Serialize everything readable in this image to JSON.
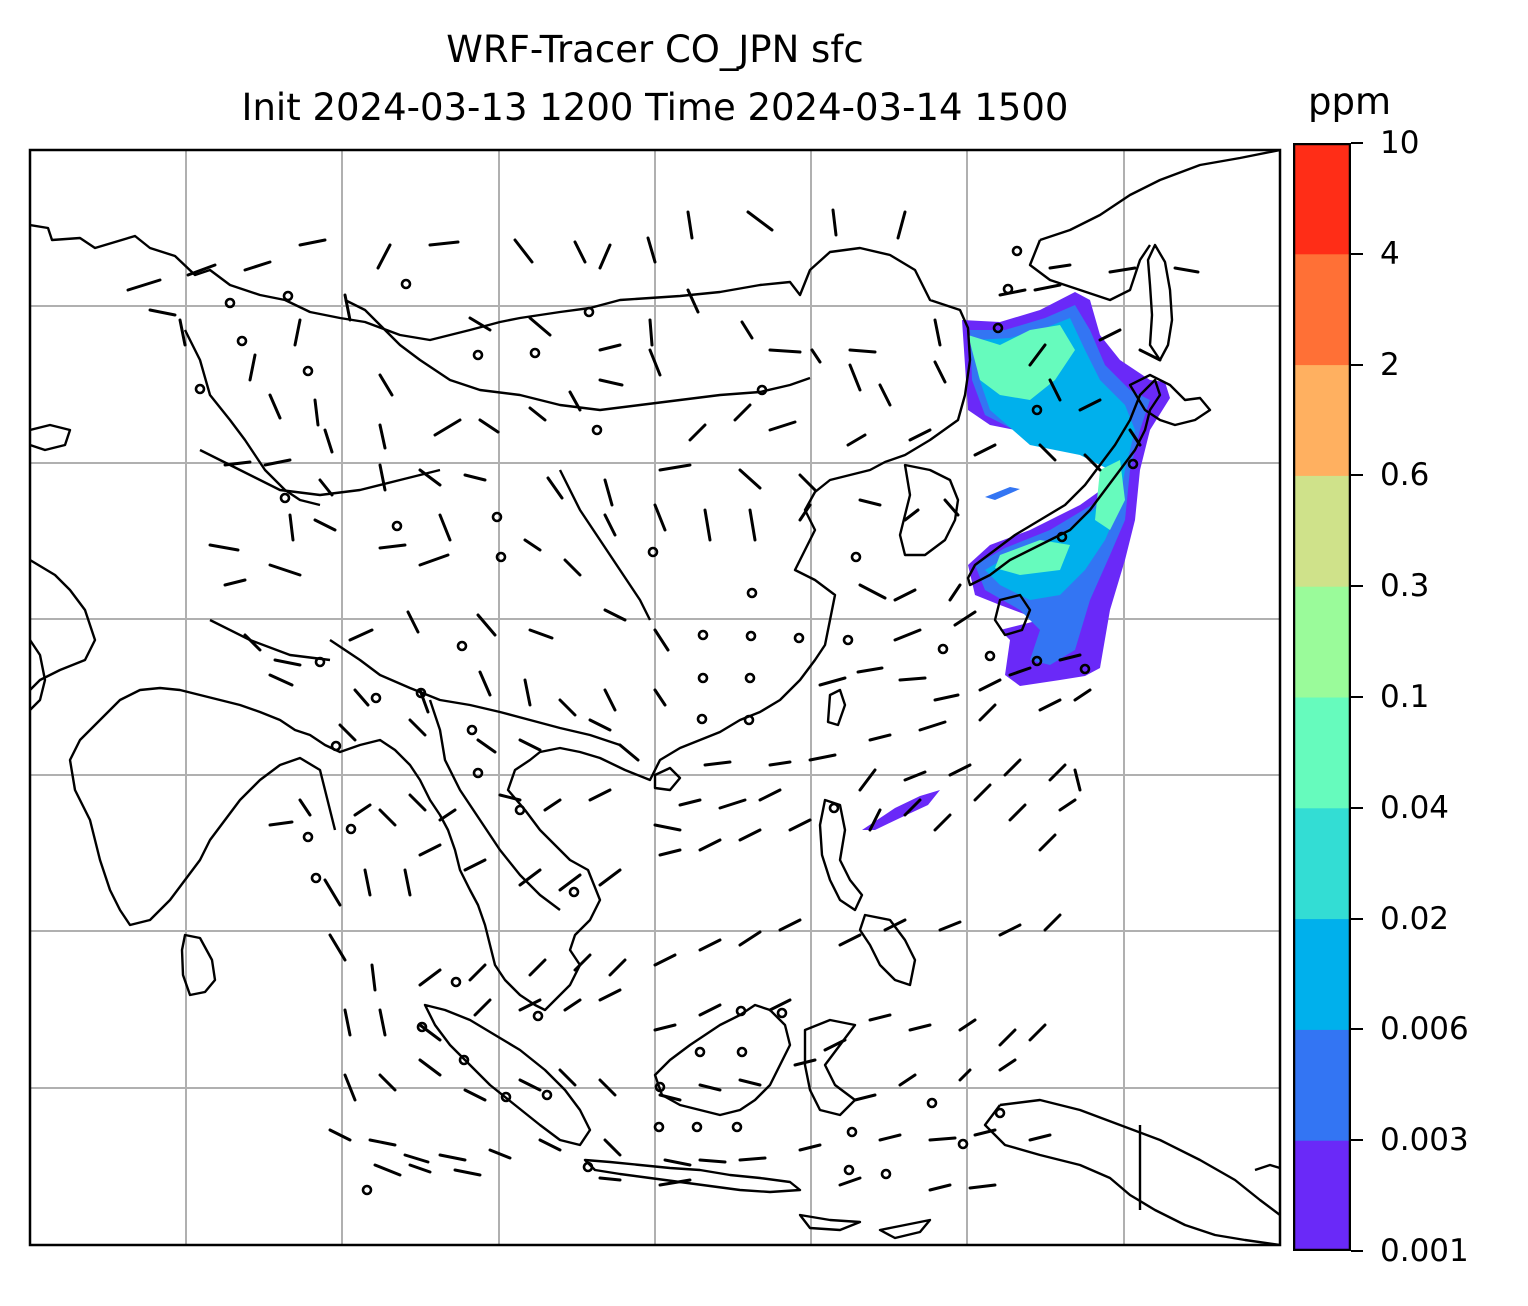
{
  "title": {
    "line1": "WRF-Tracer CO_JPN sfc",
    "line2": "Init 2024-03-13 1200 Time 2024-03-14 1500"
  },
  "colorbar": {
    "units": "ppm",
    "ticks": [
      "0.001",
      "0.003",
      "0.006",
      "0.02",
      "0.04",
      "0.1",
      "0.3",
      "0.6",
      "2",
      "4",
      "10"
    ],
    "colors": [
      "#6a29f8",
      "#3375f3",
      "#00b0ec",
      "#33ddd4",
      "#66fbbd",
      "#9afb9a",
      "#cfe28a",
      "#ffb060",
      "#ff7036",
      "#ff2d17"
    ]
  },
  "map": {
    "field": "CO_JPN tracer surface concentration",
    "plume_colors": {
      "low": "#6a29f8",
      "mid": "#3375f3",
      "high": "#00b0ec",
      "peak": "#66fbbd"
    },
    "coastline_color": "#000000",
    "grid_color": "#b0b0b0"
  }
}
